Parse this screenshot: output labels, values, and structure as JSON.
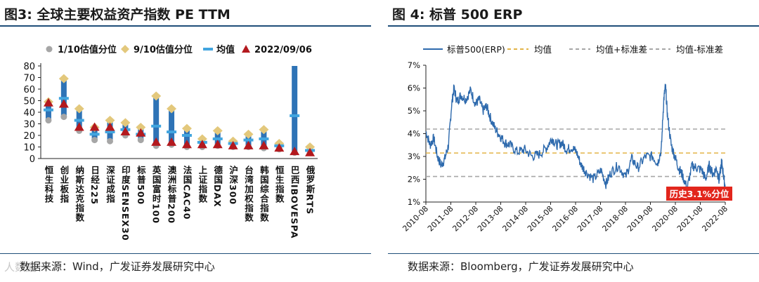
{
  "left": {
    "title": "图3:  全球主要权益资产指数  PE TTM",
    "source": "数据来源：Wind，广发证券发展研究中心",
    "watermark": "人数据",
    "chart_data": {
      "type": "range-dot",
      "title": "图3:  全球主要权益资产指数  PE TTM",
      "legend": [
        "1/10估值分位",
        "9/10估值分位",
        "均值",
        "2022/09/06"
      ],
      "ylim": [
        0,
        80
      ],
      "yticks": [
        0,
        10,
        20,
        30,
        40,
        50,
        60,
        70,
        80
      ],
      "categories": [
        "恒生科技",
        "创业板指",
        "纳斯达克指数",
        "日经225",
        "深证成指",
        "印度SENSEX30",
        "标普500",
        "英国富时100",
        "澳洲标普200",
        "法国CAC40",
        "上证指数",
        "德国DAX",
        "沪深300",
        "台湾加权指数",
        "韩国综合指数",
        "恒生指数",
        "巴西IBOVESPA",
        "俄罗斯RTS"
      ],
      "series": [
        {
          "name": "1/10估值分位",
          "values": [
            33,
            36,
            24,
            16,
            15,
            20,
            16,
            11,
            12,
            10,
            10,
            11,
            10,
            10,
            9,
            8,
            5,
            5
          ]
        },
        {
          "name": "9/10估值分位",
          "values": [
            49,
            69,
            43,
            27,
            33,
            31,
            27,
            54,
            43,
            26,
            17,
            24,
            15,
            21,
            25,
            13,
            80,
            10
          ]
        },
        {
          "name": "均值",
          "values": [
            42,
            52,
            33,
            21,
            23,
            25,
            21,
            28,
            23,
            20,
            14,
            17,
            13,
            16,
            17,
            11,
            37,
            7
          ]
        },
        {
          "name": "2022/09/06",
          "values": [
            48,
            47,
            27,
            27,
            27,
            23,
            22,
            14,
            14,
            12,
            12,
            12,
            11,
            11,
            11,
            9,
            6,
            5
          ]
        }
      ]
    }
  },
  "right": {
    "title": "图 4:  标普 500 ERP",
    "source": "数据来源：Bloomberg，广发证券发展研究中心",
    "chart_data": {
      "type": "line",
      "title": "图 4:  标普 500 ERP",
      "legend": [
        "标普500(ERP)",
        "均值",
        "均值+标准差",
        "均值-标准差"
      ],
      "ylim": [
        1,
        7
      ],
      "yticks": [
        "1%",
        "2%",
        "3%",
        "4%",
        "5%",
        "6%",
        "7%"
      ],
      "xticks": [
        "2010-08",
        "2011-08",
        "2012-08",
        "2013-08",
        "2014-08",
        "2015-08",
        "2016-08",
        "2017-08",
        "2018-08",
        "2019-08",
        "2020-08",
        "2021-08",
        "2022-08"
      ],
      "x_range": [
        2010.58,
        2022.75
      ],
      "mean": 3.15,
      "mean_plus_sd": 4.2,
      "mean_minus_sd": 2.12,
      "annotation": "历史3.1%分位",
      "series": [
        {
          "name": "标普500(ERP)",
          "x": [
            2010.58,
            2010.75,
            2010.9,
            2011.05,
            2011.2,
            2011.35,
            2011.5,
            2011.62,
            2011.72,
            2011.85,
            2012.0,
            2012.2,
            2012.4,
            2012.6,
            2012.75,
            2012.9,
            2013.05,
            2013.2,
            2013.4,
            2013.6,
            2013.8,
            2014.0,
            2014.3,
            2014.6,
            2014.9,
            2015.2,
            2015.5,
            2015.7,
            2015.9,
            2016.1,
            2016.3,
            2016.5,
            2016.7,
            2016.9,
            2017.1,
            2017.4,
            2017.7,
            2017.9,
            2018.1,
            2018.4,
            2018.7,
            2018.95,
            2019.2,
            2019.5,
            2019.8,
            2020.0,
            2020.15,
            2020.25,
            2020.32,
            2020.4,
            2020.55,
            2020.7,
            2020.85,
            2021.0,
            2021.2,
            2021.4,
            2021.6,
            2021.8,
            2021.95,
            2022.1,
            2022.25,
            2022.4,
            2022.5,
            2022.6,
            2022.7,
            2022.75
          ],
          "y": [
            4.1,
            3.5,
            3.8,
            3.0,
            2.6,
            2.9,
            3.5,
            5.2,
            6.0,
            5.4,
            5.7,
            5.5,
            5.9,
            5.3,
            5.5,
            5.0,
            5.2,
            4.7,
            4.2,
            3.9,
            3.6,
            3.5,
            3.2,
            3.3,
            3.0,
            3.1,
            3.4,
            3.8,
            3.5,
            3.6,
            3.3,
            3.4,
            3.2,
            2.6,
            2.3,
            2.0,
            2.4,
            1.8,
            2.3,
            2.6,
            2.1,
            2.9,
            2.5,
            3.0,
            3.0,
            2.7,
            3.3,
            5.5,
            6.1,
            4.8,
            3.5,
            3.0,
            2.5,
            2.2,
            1.6,
            2.6,
            2.5,
            2.4,
            2.0,
            2.6,
            2.2,
            2.5,
            1.9,
            2.8,
            2.0,
            1.6
          ]
        }
      ]
    }
  }
}
